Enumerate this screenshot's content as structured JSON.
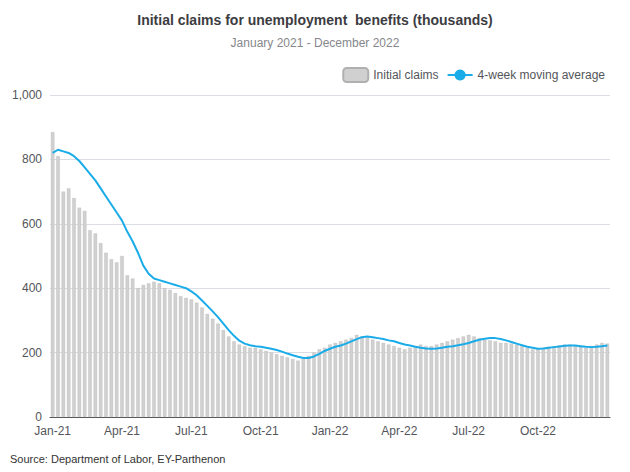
{
  "chart_data": {
    "type": "bar",
    "title": "Initial claims for unemployment  benefits (thousands)",
    "subtitle": "January 2021 - December 2022",
    "annotations": [
      "Source: Department of Labor, EY-Parthenon"
    ],
    "categories": [
      "Jan-21",
      null,
      null,
      null,
      null,
      null,
      null,
      null,
      null,
      null,
      null,
      null,
      null,
      "Apr-21",
      null,
      null,
      null,
      null,
      null,
      null,
      null,
      null,
      null,
      null,
      null,
      null,
      "Jul-21",
      null,
      null,
      null,
      null,
      null,
      null,
      null,
      null,
      null,
      null,
      null,
      null,
      "Oct-21",
      null,
      null,
      null,
      null,
      null,
      null,
      null,
      null,
      null,
      null,
      null,
      null,
      "Jan-22",
      null,
      null,
      null,
      null,
      null,
      null,
      null,
      null,
      null,
      null,
      null,
      null,
      "Apr-22",
      null,
      null,
      null,
      null,
      null,
      null,
      null,
      null,
      null,
      null,
      null,
      null,
      "Jul-22",
      null,
      null,
      null,
      null,
      null,
      null,
      null,
      null,
      null,
      null,
      null,
      null,
      "Oct-22",
      null,
      null,
      null,
      null,
      null,
      null,
      null,
      null,
      null,
      null,
      null,
      null,
      null
    ],
    "series": [
      {
        "name": "Initial claims",
        "type": "bar",
        "color": "#D0D0D0",
        "values": [
          885,
          810,
          700,
          710,
          680,
          650,
          640,
          580,
          570,
          540,
          510,
          490,
          480,
          500,
          440,
          430,
          400,
          410,
          415,
          420,
          415,
          400,
          395,
          385,
          375,
          370,
          365,
          355,
          340,
          320,
          305,
          290,
          270,
          250,
          235,
          225,
          220,
          215,
          215,
          210,
          205,
          200,
          195,
          190,
          185,
          180,
          175,
          180,
          190,
          200,
          210,
          215,
          225,
          230,
          235,
          240,
          245,
          255,
          250,
          245,
          240,
          235,
          230,
          225,
          220,
          215,
          210,
          215,
          220,
          225,
          220,
          220,
          225,
          230,
          235,
          240,
          245,
          250,
          255,
          250,
          245,
          240,
          238,
          235,
          230,
          230,
          228,
          225,
          220,
          215,
          210,
          212,
          215,
          218,
          220,
          222,
          225,
          225,
          222,
          218,
          215,
          220,
          225,
          230,
          228
        ]
      },
      {
        "name": "4-week moving average",
        "type": "line",
        "color": "#1AACE8",
        "values": [
          820,
          830,
          825,
          820,
          810,
          795,
          775,
          755,
          735,
          710,
          685,
          660,
          635,
          610,
          575,
          545,
          510,
          470,
          445,
          430,
          425,
          420,
          415,
          410,
          405,
          400,
          390,
          378,
          362,
          345,
          328,
          310,
          290,
          270,
          252,
          237,
          228,
          223,
          220,
          218,
          215,
          212,
          208,
          203,
          197,
          192,
          187,
          183,
          183,
          188,
          196,
          205,
          212,
          218,
          222,
          228,
          235,
          242,
          248,
          250,
          248,
          245,
          242,
          238,
          235,
          230,
          225,
          222,
          218,
          215,
          213,
          212,
          213,
          215,
          218,
          220,
          223,
          226,
          230,
          235,
          240,
          243,
          245,
          245,
          242,
          238,
          233,
          228,
          223,
          218,
          215,
          212,
          213,
          215,
          217,
          219,
          221,
          222,
          222,
          220,
          218,
          217,
          218,
          220,
          222
        ]
      }
    ],
    "ylim": [
      0,
      1000
    ],
    "yticks": [
      0,
      200,
      400,
      600,
      800,
      1000
    ],
    "grid": true,
    "legend": "upper right"
  }
}
